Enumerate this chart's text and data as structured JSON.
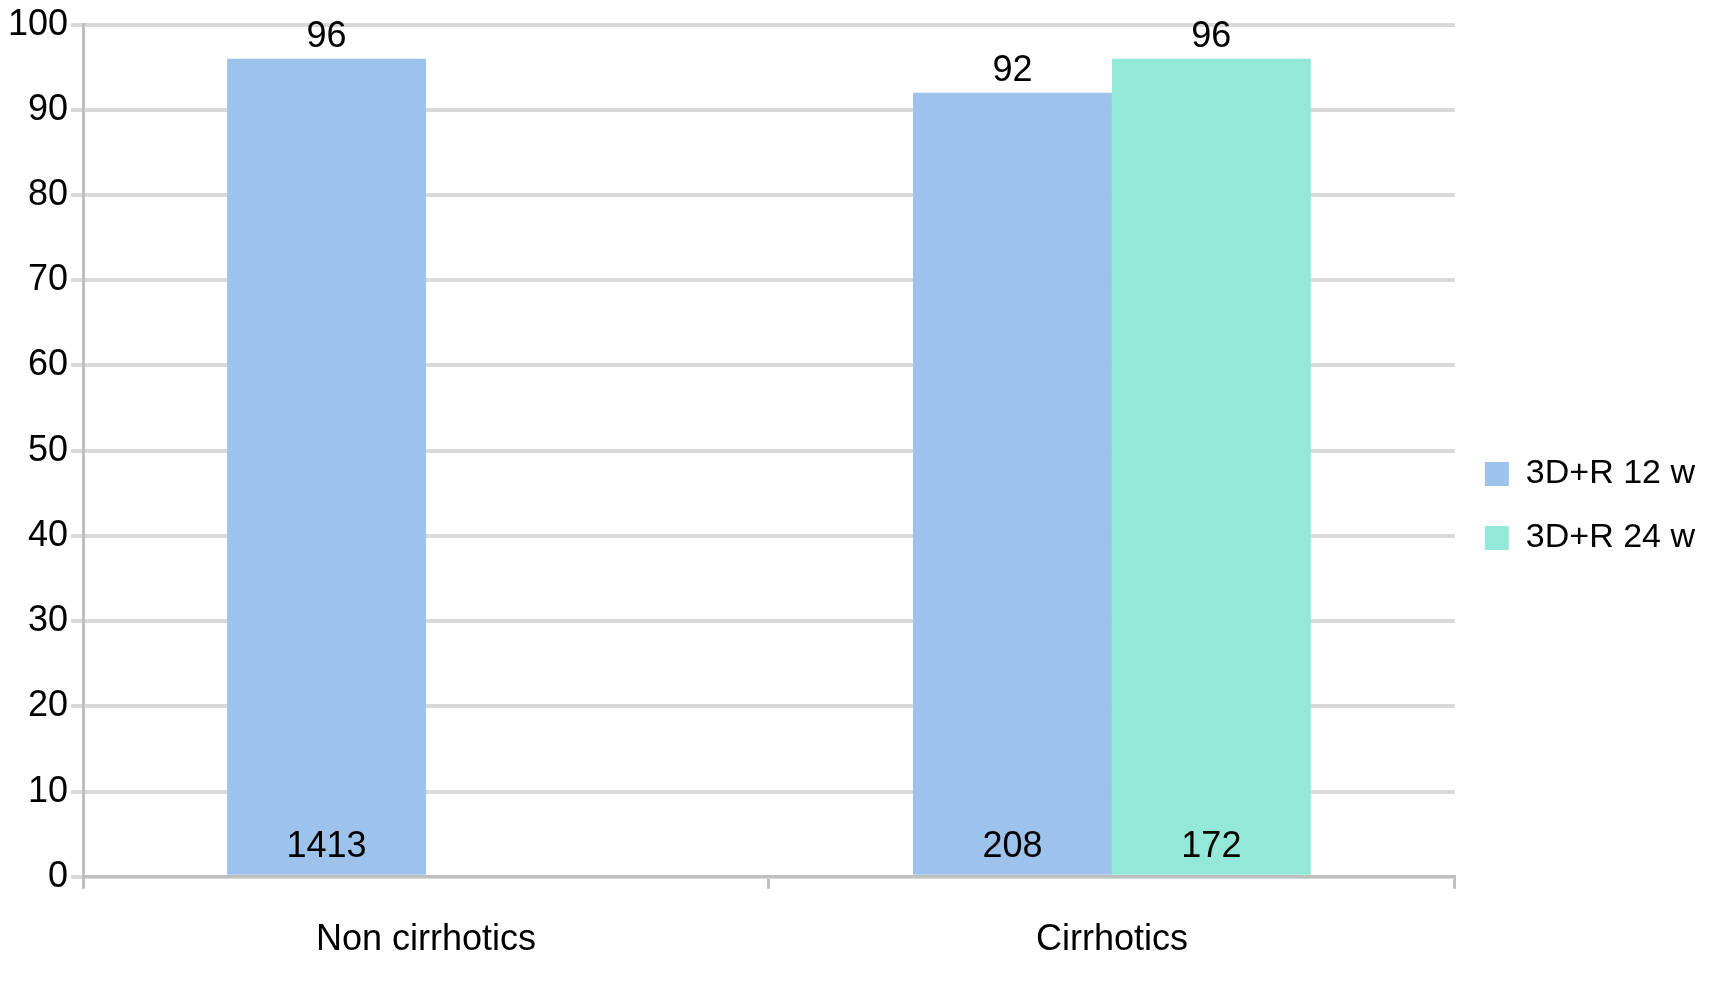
{
  "chart_data": {
    "type": "bar",
    "categories": [
      "Non cirrhotics",
      "Cirrhotics"
    ],
    "series": [
      {
        "name": "3D+R 12 w",
        "color": "#9dc3ec",
        "values": [
          96,
          92
        ]
      },
      {
        "name": "3D+R 24 w",
        "color": "#94e8d8",
        "values": [
          null,
          96
        ]
      }
    ],
    "ylim": [
      0,
      100
    ],
    "yticks": [
      0,
      10,
      20,
      30,
      40,
      50,
      60,
      70,
      80,
      90,
      100
    ],
    "grid": "y",
    "legend": "right",
    "data_labels": true,
    "annotations": [
      "1413",
      "208",
      "172"
    ]
  }
}
